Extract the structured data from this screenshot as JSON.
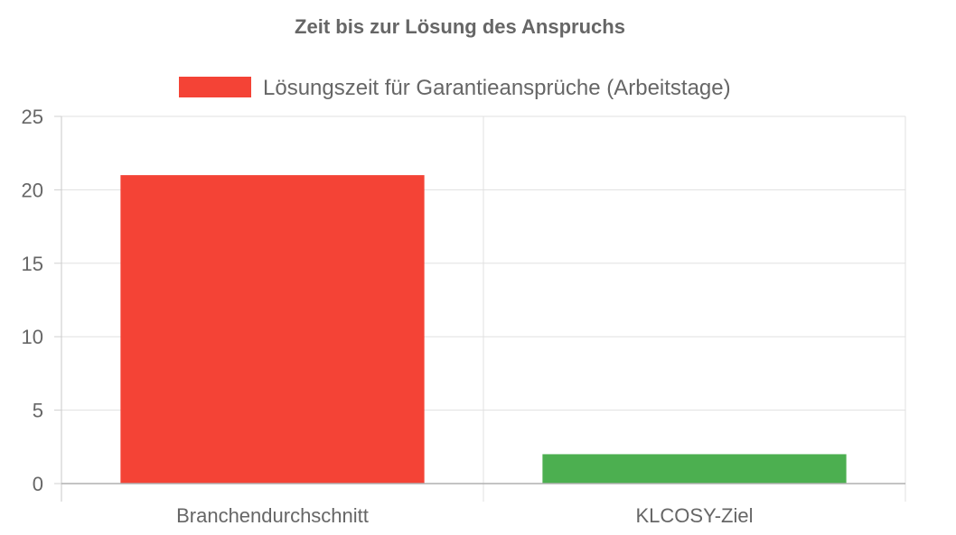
{
  "chart_data": {
    "type": "bar",
    "title": "Zeit bis zur Lösung des Anspruchs",
    "categories": [
      "Branchendurchschnitt",
      "KLCOSY-Ziel"
    ],
    "series": [
      {
        "name": "Lösungszeit für Garantieansprüche (Arbeitstage)",
        "values": [
          21,
          2
        ],
        "colors": [
          "#f44336",
          "#4caf50"
        ]
      }
    ],
    "yticks": [
      0,
      5,
      10,
      15,
      20,
      25
    ],
    "ylim": [
      0,
      25
    ],
    "xlabel": "",
    "ylabel": "",
    "grid": true,
    "legend_position": "top",
    "legend_color": "#f44336"
  }
}
